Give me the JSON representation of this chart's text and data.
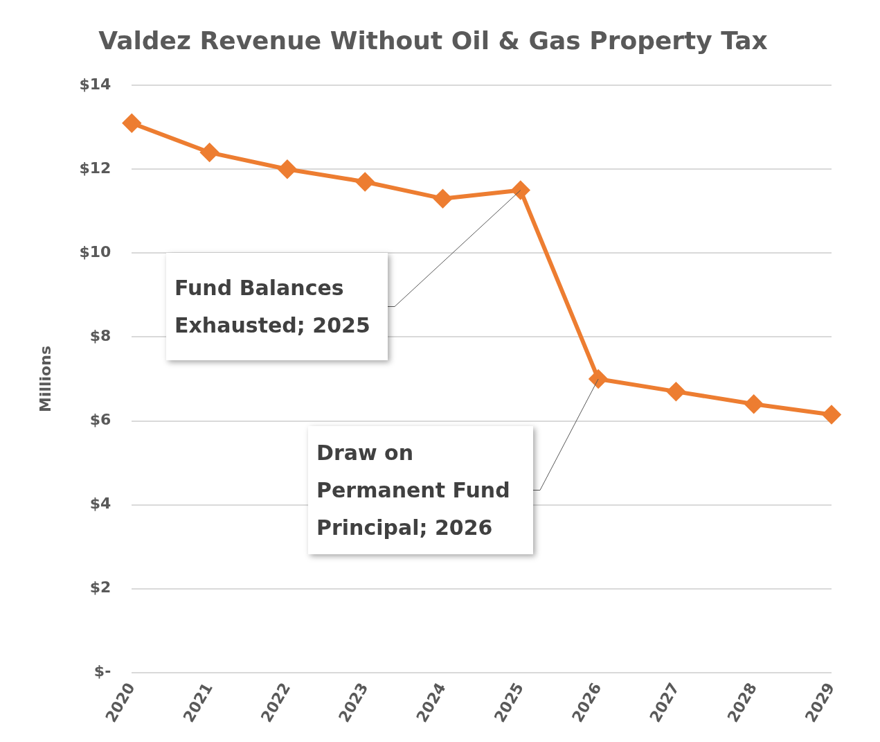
{
  "chart_data": {
    "type": "line",
    "title": "Valdez Revenue Without Oil & Gas Property Tax",
    "ylabel": "Millions",
    "categories": [
      "2020",
      "2021",
      "2022",
      "2023",
      "2024",
      "2025",
      "2026",
      "2027",
      "2028",
      "2029"
    ],
    "series": [
      {
        "color": "#ed7d31",
        "values": [
          13.1,
          12.4,
          12.0,
          11.7,
          11.3,
          11.5,
          7.0,
          6.7,
          6.4,
          6.15
        ]
      }
    ],
    "ylim": [
      0,
      14
    ],
    "yticks": [
      {
        "value": 0,
        "label": "$-"
      },
      {
        "value": 2,
        "label": "$2"
      },
      {
        "value": 4,
        "label": "$4"
      },
      {
        "value": 6,
        "label": "$6"
      },
      {
        "value": 8,
        "label": "$8"
      },
      {
        "value": 10,
        "label": "$10"
      },
      {
        "value": 12,
        "label": "$12"
      },
      {
        "value": 14,
        "label": "$14"
      }
    ],
    "grid": "y",
    "legend": false,
    "marker": "diamond",
    "line_style": "solid",
    "annotations": [
      {
        "text": "Fund Balances Exhausted; 2025",
        "x": "2025",
        "y": 11.5
      },
      {
        "text": "Draw on Permanent Fund Principal; 2026",
        "x": "2026",
        "y": 7.0
      }
    ]
  }
}
